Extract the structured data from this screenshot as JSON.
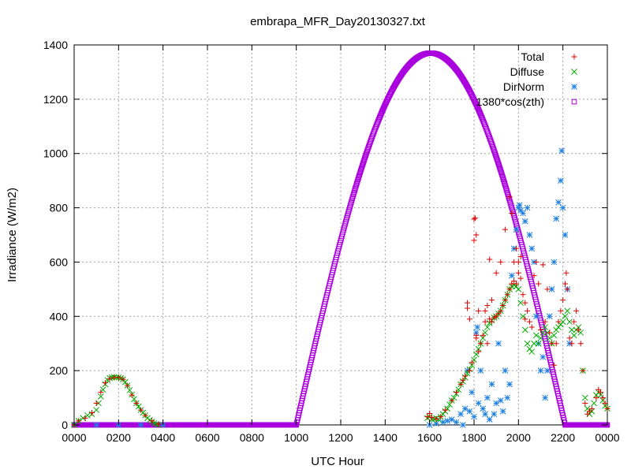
{
  "chart_data": {
    "type": "scatter",
    "title": "embrapa_MFR_Day20130327.txt",
    "xlabel": "UTC Hour",
    "ylabel": "Irradiance (W/m2)",
    "xlim": [
      0,
      24
    ],
    "ylim": [
      0,
      1400
    ],
    "x_ticks": [
      {
        "value": 0,
        "label": "0000"
      },
      {
        "value": 2,
        "label": "0200"
      },
      {
        "value": 4,
        "label": "0400"
      },
      {
        "value": 6,
        "label": "0600"
      },
      {
        "value": 8,
        "label": "0800"
      },
      {
        "value": 10,
        "label": "1000"
      },
      {
        "value": 12,
        "label": "1200"
      },
      {
        "value": 14,
        "label": "1400"
      },
      {
        "value": 16,
        "label": "1600"
      },
      {
        "value": 18,
        "label": "1800"
      },
      {
        "value": 20,
        "label": "2000"
      },
      {
        "value": 22,
        "label": "2200"
      },
      {
        "value": 24,
        "label": "0000"
      }
    ],
    "y_ticks": [
      {
        "value": 0,
        "label": "0"
      },
      {
        "value": 200,
        "label": "200"
      },
      {
        "value": 400,
        "label": "400"
      },
      {
        "value": 600,
        "label": "600"
      },
      {
        "value": 800,
        "label": "800"
      },
      {
        "value": 1000,
        "label": "1000"
      },
      {
        "value": 1200,
        "label": "1200"
      },
      {
        "value": 1400,
        "label": "1400"
      }
    ],
    "grid": true,
    "legend_position": "top-right",
    "series": [
      {
        "name": "Total",
        "marker": "plus",
        "color": "#dd0000",
        "points": [
          [
            0.0,
            0
          ],
          [
            0.2,
            15
          ],
          [
            0.5,
            25
          ],
          [
            0.8,
            45
          ],
          [
            1.0,
            80
          ],
          [
            1.2,
            120
          ],
          [
            1.4,
            155
          ],
          [
            1.6,
            170
          ],
          [
            1.8,
            175
          ],
          [
            2.0,
            175
          ],
          [
            2.2,
            168
          ],
          [
            2.4,
            145
          ],
          [
            2.6,
            110
          ],
          [
            2.8,
            80
          ],
          [
            3.0,
            55
          ],
          [
            3.2,
            35
          ],
          [
            3.5,
            15
          ],
          [
            3.8,
            3
          ],
          [
            15.9,
            30
          ],
          [
            16.0,
            42
          ],
          [
            16.1,
            28
          ],
          [
            16.3,
            22
          ],
          [
            16.5,
            30
          ],
          [
            16.7,
            55
          ],
          [
            17.0,
            90
          ],
          [
            17.2,
            120
          ],
          [
            17.4,
            150
          ],
          [
            17.5,
            165
          ],
          [
            17.6,
            180
          ],
          [
            17.7,
            430
          ],
          [
            17.7,
            450
          ],
          [
            17.8,
            200
          ],
          [
            17.8,
            390
          ],
          [
            17.9,
            230
          ],
          [
            18.0,
            758
          ],
          [
            18.05,
            762
          ],
          [
            18.1,
            330
          ],
          [
            18.1,
            320
          ],
          [
            18.0,
            680
          ],
          [
            18.1,
            700
          ],
          [
            18.2,
            270
          ],
          [
            18.2,
            420
          ],
          [
            18.3,
            300
          ],
          [
            18.4,
            330
          ],
          [
            18.5,
            380
          ],
          [
            18.5,
            420
          ],
          [
            18.6,
            300
          ],
          [
            18.6,
            440
          ],
          [
            18.7,
            390
          ],
          [
            18.7,
            610
          ],
          [
            18.8,
            380
          ],
          [
            18.8,
            460
          ],
          [
            18.9,
            395
          ],
          [
            19.0,
            400
          ],
          [
            19.0,
            560
          ],
          [
            19.1,
            410
          ],
          [
            19.2,
            420
          ],
          [
            19.2,
            600
          ],
          [
            19.3,
            440
          ],
          [
            19.4,
            460
          ],
          [
            19.4,
            720
          ],
          [
            19.5,
            480
          ],
          [
            19.6,
            500
          ],
          [
            19.6,
            840
          ],
          [
            19.7,
            520
          ],
          [
            19.7,
            780
          ],
          [
            19.8,
            530
          ],
          [
            19.8,
            600
          ],
          [
            19.9,
            520
          ],
          [
            19.9,
            650
          ],
          [
            20.0,
            560
          ],
          [
            20.0,
            600
          ],
          [
            20.1,
            540
          ],
          [
            20.1,
            620
          ],
          [
            20.2,
            480
          ],
          [
            20.3,
            450
          ],
          [
            20.3,
            390
          ],
          [
            20.4,
            420
          ],
          [
            20.5,
            380
          ],
          [
            20.6,
            360
          ],
          [
            20.7,
            550
          ],
          [
            20.8,
            600
          ],
          [
            20.9,
            520
          ],
          [
            21.0,
            350
          ],
          [
            21.1,
            590
          ],
          [
            21.2,
            380
          ],
          [
            21.3,
            500
          ],
          [
            21.4,
            340
          ],
          [
            21.5,
            300
          ],
          [
            21.6,
            220
          ],
          [
            21.7,
            300
          ],
          [
            21.8,
            380
          ],
          [
            21.9,
            420
          ],
          [
            22.0,
            460
          ],
          [
            22.1,
            520
          ],
          [
            22.15,
            560
          ],
          [
            22.2,
            500
          ],
          [
            22.3,
            320
          ],
          [
            22.4,
            300
          ],
          [
            22.5,
            380
          ],
          [
            22.6,
            420
          ],
          [
            22.7,
            350
          ],
          [
            22.8,
            300
          ],
          [
            22.9,
            200
          ],
          [
            23.0,
            80
          ],
          [
            23.1,
            40
          ],
          [
            23.2,
            50
          ],
          [
            23.3,
            60
          ],
          [
            23.5,
            100
          ],
          [
            23.6,
            130
          ],
          [
            23.7,
            120
          ],
          [
            23.8,
            100
          ],
          [
            23.9,
            80
          ],
          [
            24.0,
            60
          ]
        ]
      },
      {
        "name": "Diffuse",
        "marker": "cross",
        "color": "#00aa00",
        "points": [
          [
            0.0,
            0
          ],
          [
            0.2,
            15
          ],
          [
            0.4,
            25
          ],
          [
            0.6,
            35
          ],
          [
            0.8,
            40
          ],
          [
            1.0,
            55
          ],
          [
            1.1,
            80
          ],
          [
            1.2,
            105
          ],
          [
            1.3,
            130
          ],
          [
            1.4,
            150
          ],
          [
            1.5,
            165
          ],
          [
            1.6,
            172
          ],
          [
            1.7,
            175
          ],
          [
            1.8,
            176
          ],
          [
            1.9,
            175
          ],
          [
            2.0,
            175
          ],
          [
            2.1,
            172
          ],
          [
            2.2,
            168
          ],
          [
            2.3,
            158
          ],
          [
            2.4,
            145
          ],
          [
            2.5,
            128
          ],
          [
            2.6,
            112
          ],
          [
            2.7,
            95
          ],
          [
            2.8,
            80
          ],
          [
            2.9,
            68
          ],
          [
            3.0,
            55
          ],
          [
            3.1,
            45
          ],
          [
            3.2,
            35
          ],
          [
            3.3,
            25
          ],
          [
            3.4,
            18
          ],
          [
            3.5,
            12
          ],
          [
            3.6,
            6
          ],
          [
            3.7,
            3
          ],
          [
            3.8,
            0
          ],
          [
            15.9,
            25
          ],
          [
            16.0,
            30
          ],
          [
            16.1,
            20
          ],
          [
            16.2,
            22
          ],
          [
            16.3,
            25
          ],
          [
            16.4,
            20
          ],
          [
            16.5,
            30
          ],
          [
            16.6,
            40
          ],
          [
            16.7,
            50
          ],
          [
            16.8,
            60
          ],
          [
            16.9,
            75
          ],
          [
            17.0,
            90
          ],
          [
            17.1,
            100
          ],
          [
            17.2,
            115
          ],
          [
            17.3,
            130
          ],
          [
            17.4,
            150
          ],
          [
            17.5,
            160
          ],
          [
            17.6,
            175
          ],
          [
            17.7,
            190
          ],
          [
            17.8,
            205
          ],
          [
            17.9,
            220
          ],
          [
            18.0,
            240
          ],
          [
            18.1,
            260
          ],
          [
            18.2,
            280
          ],
          [
            18.3,
            300
          ],
          [
            18.4,
            320
          ],
          [
            18.5,
            340
          ],
          [
            18.6,
            360
          ],
          [
            18.7,
            375
          ],
          [
            18.8,
            385
          ],
          [
            18.9,
            395
          ],
          [
            19.0,
            400
          ],
          [
            19.1,
            410
          ],
          [
            19.2,
            420
          ],
          [
            19.3,
            440
          ],
          [
            19.4,
            460
          ],
          [
            19.5,
            480
          ],
          [
            19.6,
            500
          ],
          [
            19.7,
            510
          ],
          [
            19.8,
            515
          ],
          [
            19.9,
            510
          ],
          [
            20.0,
            500
          ],
          [
            20.1,
            450
          ],
          [
            20.2,
            400
          ],
          [
            20.3,
            350
          ],
          [
            20.4,
            300
          ],
          [
            20.5,
            280
          ],
          [
            20.6,
            270
          ],
          [
            20.7,
            300
          ],
          [
            20.8,
            330
          ],
          [
            20.9,
            300
          ],
          [
            21.0,
            320
          ],
          [
            21.1,
            340
          ],
          [
            21.2,
            360
          ],
          [
            21.3,
            340
          ],
          [
            21.4,
            320
          ],
          [
            21.5,
            300
          ],
          [
            21.6,
            330
          ],
          [
            21.7,
            350
          ],
          [
            21.8,
            360
          ],
          [
            21.9,
            370
          ],
          [
            22.0,
            380
          ],
          [
            22.1,
            400
          ],
          [
            22.2,
            420
          ],
          [
            22.3,
            380
          ],
          [
            22.4,
            350
          ],
          [
            22.5,
            330
          ],
          [
            22.6,
            350
          ],
          [
            22.7,
            360
          ],
          [
            22.8,
            340
          ],
          [
            22.9,
            200
          ],
          [
            23.0,
            100
          ],
          [
            23.1,
            60
          ],
          [
            23.2,
            40
          ],
          [
            23.3,
            50
          ],
          [
            23.4,
            80
          ],
          [
            23.5,
            110
          ],
          [
            23.6,
            120
          ],
          [
            23.7,
            110
          ],
          [
            23.8,
            90
          ],
          [
            23.9,
            70
          ],
          [
            24.0,
            60
          ]
        ]
      },
      {
        "name": "DirNorm",
        "marker": "star",
        "color": "#1e7fe0",
        "points": [
          [
            0.0,
            0
          ],
          [
            1.0,
            0
          ],
          [
            2.0,
            0
          ],
          [
            3.0,
            0
          ],
          [
            4.0,
            0
          ],
          [
            16.0,
            0
          ],
          [
            16.3,
            5
          ],
          [
            16.6,
            10
          ],
          [
            16.8,
            15
          ],
          [
            17.0,
            20
          ],
          [
            17.2,
            10
          ],
          [
            17.4,
            40
          ],
          [
            17.5,
            0
          ],
          [
            17.6,
            60
          ],
          [
            17.7,
            200
          ],
          [
            17.8,
            50
          ],
          [
            17.9,
            120
          ],
          [
            18.0,
            30
          ],
          [
            18.1,
            340
          ],
          [
            18.15,
            360
          ],
          [
            18.2,
            80
          ],
          [
            18.3,
            200
          ],
          [
            18.4,
            60
          ],
          [
            18.5,
            40
          ],
          [
            18.6,
            100
          ],
          [
            18.7,
            20
          ],
          [
            18.8,
            150
          ],
          [
            18.9,
            40
          ],
          [
            19.0,
            80
          ],
          [
            19.1,
            300
          ],
          [
            19.2,
            90
          ],
          [
            19.3,
            50
          ],
          [
            19.4,
            200
          ],
          [
            19.5,
            100
          ],
          [
            19.6,
            150
          ],
          [
            19.7,
            550
          ],
          [
            19.8,
            650
          ],
          [
            19.9,
            720
          ],
          [
            20.0,
            800
          ],
          [
            20.05,
            810
          ],
          [
            20.1,
            790
          ],
          [
            20.2,
            780
          ],
          [
            20.3,
            750
          ],
          [
            20.4,
            800
          ],
          [
            20.5,
            700
          ],
          [
            20.6,
            650
          ],
          [
            20.7,
            600
          ],
          [
            20.8,
            400
          ],
          [
            20.9,
            300
          ],
          [
            21.0,
            200
          ],
          [
            21.1,
            250
          ],
          [
            21.2,
            100
          ],
          [
            21.3,
            200
          ],
          [
            21.4,
            400
          ],
          [
            21.5,
            500
          ],
          [
            21.6,
            600
          ],
          [
            21.7,
            760
          ],
          [
            21.8,
            820
          ],
          [
            21.9,
            900
          ],
          [
            21.95,
            1010
          ],
          [
            22.0,
            800
          ],
          [
            22.1,
            700
          ],
          [
            22.2,
            500
          ],
          [
            22.3,
            300
          ]
        ]
      },
      {
        "name": "1380*cos(zth)",
        "marker": "square",
        "color": "#aa00dd",
        "formula": {
          "peak": 1370,
          "sunrise": 10.0,
          "sunset": 22.1,
          "noon": 16.05
        },
        "points": []
      }
    ]
  }
}
